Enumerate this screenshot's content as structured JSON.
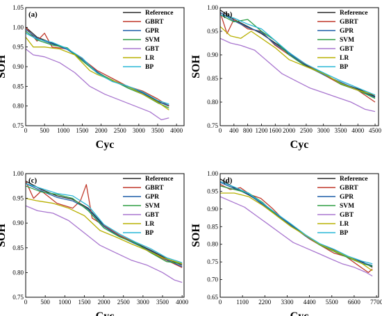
{
  "colors": {
    "Reference": "#2b2b2b",
    "GBRT": "#c0392b",
    "GPR": "#1f5fa8",
    "SVM": "#2e9e44",
    "GBT": "#a875cf",
    "LR": "#b8b000",
    "BP": "#27b5d6"
  },
  "chart_data": [
    {
      "type": "line",
      "panel_label": "(a)",
      "xlabel": "Cyc",
      "ylabel": "SOH",
      "xlim": [
        0,
        4200
      ],
      "ylim": [
        0.75,
        1.05
      ],
      "xticks": [
        0,
        500,
        1000,
        1500,
        2000,
        2500,
        3000,
        3500,
        4000
      ],
      "yticks": [
        0.75,
        0.8,
        0.85,
        0.9,
        0.95,
        1.0,
        1.05
      ],
      "legend": "top-right",
      "series": [
        {
          "name": "Reference",
          "x": [
            0,
            300,
            700,
            1100,
            1500,
            1900,
            2300,
            2700,
            3100,
            3500,
            3800
          ],
          "y": [
            1.0,
            0.975,
            0.96,
            0.945,
            0.92,
            0.885,
            0.865,
            0.85,
            0.835,
            0.812,
            0.8
          ]
        },
        {
          "name": "GBRT",
          "x": [
            0,
            300,
            500,
            700,
            1100,
            1500,
            1900,
            2300,
            2700,
            3100,
            3500,
            3800
          ],
          "y": [
            1.0,
            0.965,
            0.985,
            0.95,
            0.945,
            0.92,
            0.89,
            0.87,
            0.85,
            0.838,
            0.818,
            0.8
          ]
        },
        {
          "name": "GPR",
          "x": [
            0,
            300,
            700,
            1100,
            1500,
            1900,
            2300,
            2700,
            3100,
            3500,
            3800
          ],
          "y": [
            0.995,
            0.972,
            0.958,
            0.944,
            0.918,
            0.887,
            0.863,
            0.849,
            0.833,
            0.81,
            0.802
          ]
        },
        {
          "name": "SVM",
          "x": [
            0,
            300,
            700,
            1100,
            1500,
            1900,
            2300,
            2700,
            3100,
            3500,
            3800
          ],
          "y": [
            0.99,
            0.968,
            0.955,
            0.948,
            0.915,
            0.884,
            0.866,
            0.846,
            0.83,
            0.808,
            0.795
          ]
        },
        {
          "name": "GBT",
          "x": [
            0,
            200,
            500,
            900,
            1300,
            1700,
            2100,
            2500,
            2900,
            3300,
            3600,
            3800
          ],
          "y": [
            0.945,
            0.93,
            0.925,
            0.91,
            0.885,
            0.85,
            0.83,
            0.815,
            0.8,
            0.785,
            0.765,
            0.77
          ]
        },
        {
          "name": "LR",
          "x": [
            0,
            200,
            500,
            900,
            1300,
            1700,
            1900,
            2300,
            2700,
            3100,
            3500,
            3800
          ],
          "y": [
            0.975,
            0.95,
            0.95,
            0.945,
            0.93,
            0.89,
            0.88,
            0.865,
            0.85,
            0.83,
            0.81,
            0.79
          ]
        },
        {
          "name": "BP",
          "x": [
            0,
            300,
            700,
            1100,
            1500,
            1900,
            2300,
            2700,
            3100,
            3500,
            3800
          ],
          "y": [
            0.985,
            0.97,
            0.962,
            0.946,
            0.922,
            0.883,
            0.862,
            0.851,
            0.836,
            0.814,
            0.805
          ]
        }
      ]
    },
    {
      "type": "line",
      "panel_label": "(b)",
      "xlabel": "Cyc",
      "ylabel": "SOH",
      "xlim": [
        0,
        4600
      ],
      "ylim": [
        0.75,
        1.0
      ],
      "xticks": [
        0,
        400,
        800,
        1200,
        1600,
        2000,
        2500,
        3000,
        3500,
        4000,
        4500
      ],
      "xtick_labels": [
        "0",
        "400",
        "800",
        "1200",
        "1600",
        "2000",
        "2500",
        "3000",
        "3500",
        "4000",
        "4500"
      ],
      "yticks": [
        0.75,
        0.8,
        0.85,
        0.9,
        0.95,
        1.0
      ],
      "legend": "top-right",
      "series": [
        {
          "name": "Reference",
          "x": [
            0,
            400,
            800,
            1200,
            1600,
            2000,
            2500,
            3000,
            3500,
            4000,
            4500
          ],
          "y": [
            0.995,
            0.975,
            0.96,
            0.945,
            0.925,
            0.905,
            0.878,
            0.86,
            0.84,
            0.828,
            0.812
          ]
        },
        {
          "name": "GBRT",
          "x": [
            0,
            200,
            400,
            800,
            1200,
            1600,
            2000,
            2500,
            3000,
            3500,
            4000,
            4500
          ],
          "y": [
            0.99,
            0.945,
            0.975,
            0.955,
            0.95,
            0.92,
            0.9,
            0.88,
            0.858,
            0.838,
            0.825,
            0.8
          ]
        },
        {
          "name": "GPR",
          "x": [
            0,
            400,
            800,
            1200,
            1600,
            2000,
            2500,
            3000,
            3500,
            4000,
            4500
          ],
          "y": [
            0.99,
            0.972,
            0.958,
            0.948,
            0.922,
            0.903,
            0.876,
            0.858,
            0.842,
            0.826,
            0.81
          ]
        },
        {
          "name": "SVM",
          "x": [
            0,
            400,
            800,
            1200,
            1600,
            2000,
            2500,
            3000,
            3500,
            4000,
            4500
          ],
          "y": [
            0.985,
            0.97,
            0.975,
            0.95,
            0.93,
            0.9,
            0.875,
            0.862,
            0.838,
            0.825,
            0.808
          ]
        },
        {
          "name": "GBT",
          "x": [
            0,
            300,
            600,
            1000,
            1400,
            1800,
            2200,
            2600,
            3000,
            3400,
            3800,
            4200,
            4500
          ],
          "y": [
            0.935,
            0.925,
            0.92,
            0.91,
            0.885,
            0.86,
            0.845,
            0.83,
            0.82,
            0.81,
            0.8,
            0.785,
            0.78
          ]
        },
        {
          "name": "LR",
          "x": [
            0,
            300,
            600,
            900,
            1200,
            1600,
            2000,
            2500,
            3000,
            3500,
            4000,
            4500
          ],
          "y": [
            0.96,
            0.94,
            0.935,
            0.95,
            0.935,
            0.915,
            0.89,
            0.875,
            0.86,
            0.84,
            0.825,
            0.815
          ]
        },
        {
          "name": "BP",
          "x": [
            0,
            400,
            800,
            1200,
            1600,
            2000,
            2500,
            3000,
            3500,
            4000,
            4500
          ],
          "y": [
            0.985,
            0.978,
            0.965,
            0.955,
            0.93,
            0.905,
            0.88,
            0.862,
            0.845,
            0.83,
            0.815
          ]
        }
      ]
    },
    {
      "type": "line",
      "panel_label": "(c)",
      "xlabel": "Cyc",
      "ylabel": "SOH",
      "xlim": [
        0,
        4050
      ],
      "ylim": [
        0.75,
        1.0
      ],
      "xticks": [
        0,
        500,
        1000,
        1500,
        2000,
        2500,
        3000,
        3500,
        4000
      ],
      "yticks": [
        0.75,
        0.8,
        0.85,
        0.9,
        0.95,
        1.0
      ],
      "legend": "top-right",
      "series": [
        {
          "name": "Reference",
          "x": [
            0,
            400,
            800,
            1200,
            1600,
            2000,
            2400,
            2800,
            3200,
            3600,
            4000
          ],
          "y": [
            0.985,
            0.968,
            0.955,
            0.948,
            0.93,
            0.895,
            0.875,
            0.86,
            0.845,
            0.828,
            0.815
          ]
        },
        {
          "name": "GBRT",
          "x": [
            0,
            200,
            400,
            800,
            1200,
            1400,
            1550,
            1700,
            2000,
            2400,
            2800,
            3200,
            3600,
            4000
          ],
          "y": [
            0.985,
            0.95,
            0.965,
            0.94,
            0.93,
            0.945,
            0.978,
            0.91,
            0.895,
            0.875,
            0.86,
            0.84,
            0.825,
            0.81
          ]
        },
        {
          "name": "GPR",
          "x": [
            0,
            400,
            800,
            1200,
            1600,
            2000,
            2400,
            2800,
            3200,
            3600,
            4000
          ],
          "y": [
            0.98,
            0.965,
            0.952,
            0.945,
            0.928,
            0.893,
            0.873,
            0.858,
            0.843,
            0.826,
            0.812
          ]
        },
        {
          "name": "SVM",
          "x": [
            0,
            400,
            800,
            1200,
            1600,
            2000,
            2400,
            2800,
            3200,
            3600,
            4000
          ],
          "y": [
            0.975,
            0.963,
            0.958,
            0.95,
            0.925,
            0.89,
            0.872,
            0.86,
            0.84,
            0.822,
            0.818
          ]
        },
        {
          "name": "GBT",
          "x": [
            0,
            300,
            700,
            1100,
            1500,
            1900,
            2300,
            2700,
            3100,
            3500,
            3800,
            4000
          ],
          "y": [
            0.935,
            0.925,
            0.92,
            0.905,
            0.88,
            0.855,
            0.84,
            0.825,
            0.815,
            0.8,
            0.785,
            0.78
          ]
        },
        {
          "name": "LR",
          "x": [
            0,
            300,
            700,
            1100,
            1500,
            1900,
            2300,
            2700,
            3100,
            3500,
            4000
          ],
          "y": [
            0.95,
            0.945,
            0.94,
            0.93,
            0.915,
            0.885,
            0.872,
            0.858,
            0.845,
            0.83,
            0.818
          ]
        },
        {
          "name": "BP",
          "x": [
            0,
            400,
            800,
            1200,
            1600,
            2000,
            2400,
            2800,
            3200,
            3600,
            4000
          ],
          "y": [
            0.98,
            0.97,
            0.96,
            0.955,
            0.935,
            0.897,
            0.878,
            0.862,
            0.848,
            0.83,
            0.82
          ]
        }
      ]
    },
    {
      "type": "line",
      "panel_label": "(d)",
      "xlabel": "Cyc",
      "ylabel": "SOH",
      "xlim": [
        0,
        7800
      ],
      "ylim": [
        0.65,
        1.0
      ],
      "xticks": [
        0,
        1100,
        2200,
        3300,
        4400,
        5500,
        6600,
        7700
      ],
      "yticks": [
        0.65,
        0.7,
        0.75,
        0.8,
        0.85,
        0.9,
        0.95,
        1.0
      ],
      "legend": "top-right",
      "series": [
        {
          "name": "Reference",
          "x": [
            0,
            700,
            1400,
            2100,
            2800,
            3500,
            4200,
            4900,
            5600,
            6300,
            7000,
            7500
          ],
          "y": [
            0.985,
            0.96,
            0.94,
            0.915,
            0.885,
            0.855,
            0.825,
            0.8,
            0.785,
            0.765,
            0.75,
            0.735
          ]
        },
        {
          "name": "GBRT",
          "x": [
            0,
            500,
            1000,
            1500,
            2000,
            2600,
            3200,
            3800,
            4400,
            5000,
            5600,
            6200,
            6800,
            7300,
            7500
          ],
          "y": [
            0.97,
            0.955,
            0.96,
            0.94,
            0.93,
            0.9,
            0.865,
            0.84,
            0.815,
            0.795,
            0.775,
            0.765,
            0.74,
            0.72,
            0.73
          ]
        },
        {
          "name": "GPR",
          "x": [
            0,
            700,
            1400,
            2100,
            2800,
            3500,
            4200,
            4900,
            5600,
            6300,
            7000,
            7500
          ],
          "y": [
            0.975,
            0.958,
            0.942,
            0.912,
            0.883,
            0.853,
            0.823,
            0.8,
            0.783,
            0.764,
            0.748,
            0.74
          ]
        },
        {
          "name": "SVM",
          "x": [
            0,
            700,
            1400,
            2100,
            2800,
            3500,
            4200,
            4900,
            5600,
            6300,
            7000,
            7500
          ],
          "y": [
            0.965,
            0.955,
            0.945,
            0.918,
            0.88,
            0.85,
            0.826,
            0.798,
            0.78,
            0.762,
            0.745,
            0.738
          ]
        },
        {
          "name": "GBT",
          "x": [
            0,
            600,
            1200,
            1800,
            2400,
            3000,
            3600,
            4200,
            4800,
            5400,
            6000,
            6600,
            7200,
            7500
          ],
          "y": [
            0.935,
            0.92,
            0.905,
            0.88,
            0.855,
            0.83,
            0.805,
            0.79,
            0.775,
            0.76,
            0.745,
            0.735,
            0.72,
            0.71
          ]
        },
        {
          "name": "LR",
          "x": [
            0,
            700,
            1400,
            2100,
            2800,
            3500,
            4200,
            4900,
            5600,
            6300,
            7000,
            7500
          ],
          "y": [
            0.945,
            0.945,
            0.935,
            0.91,
            0.88,
            0.85,
            0.825,
            0.8,
            0.782,
            0.765,
            0.745,
            0.725
          ]
        },
        {
          "name": "BP",
          "x": [
            0,
            700,
            1400,
            2100,
            2800,
            3500,
            4200,
            4900,
            5600,
            6300,
            7000,
            7500
          ],
          "y": [
            0.978,
            0.962,
            0.944,
            0.916,
            0.886,
            0.857,
            0.827,
            0.802,
            0.786,
            0.766,
            0.752,
            0.745
          ]
        }
      ]
    }
  ]
}
